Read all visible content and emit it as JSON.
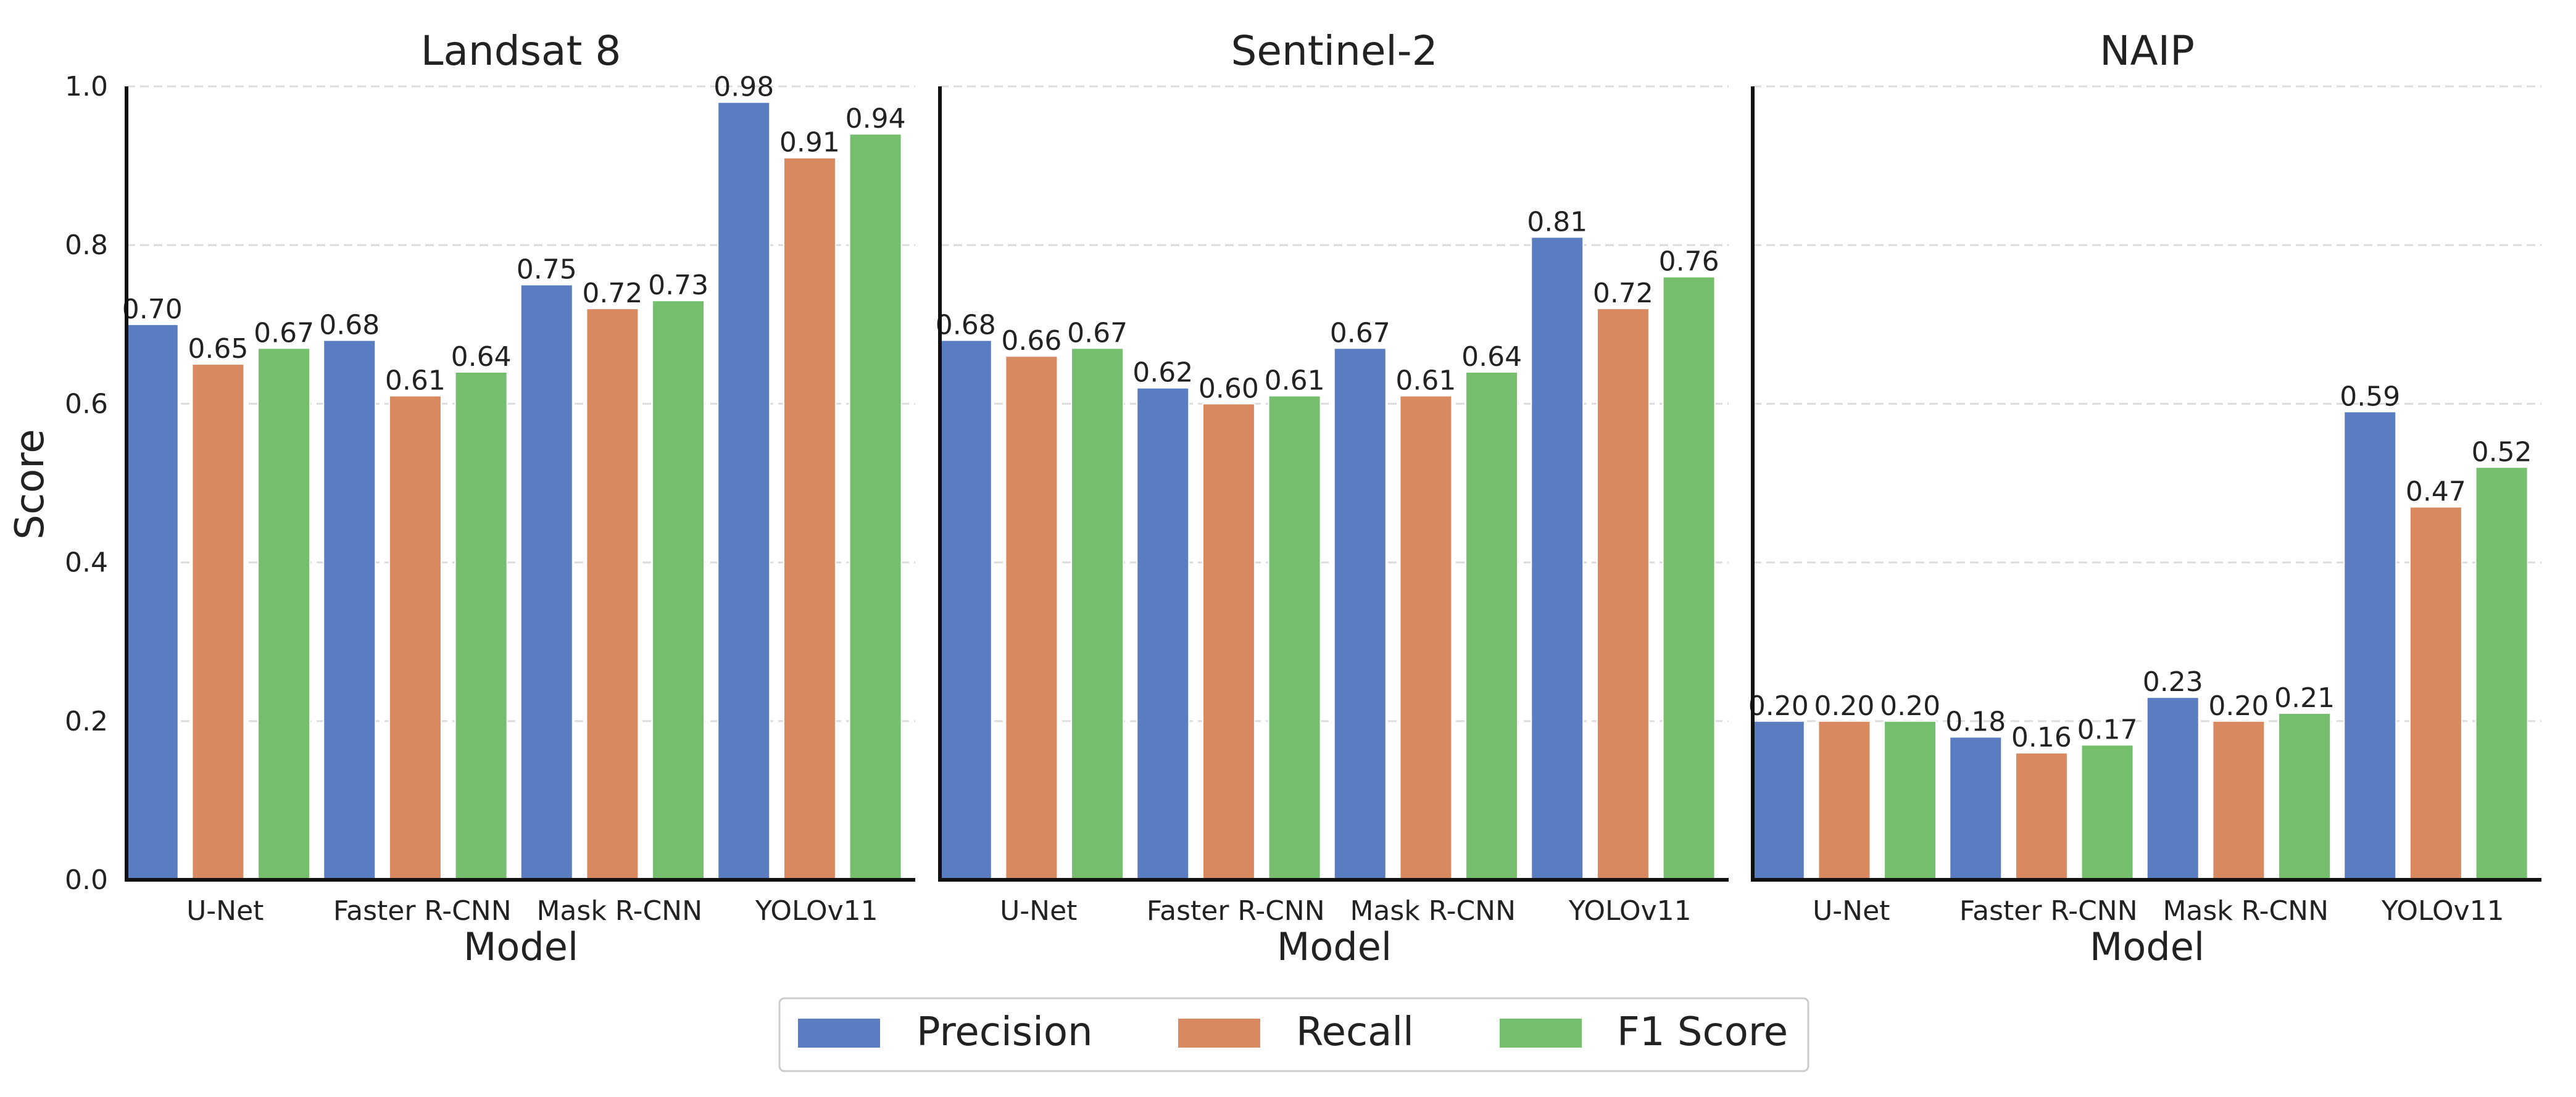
{
  "figure": {
    "ylabel": "Score",
    "legend": [
      {
        "name": "Precision",
        "color": "#5A7DC1"
      },
      {
        "name": "Recall",
        "color": "#D9895F"
      },
      {
        "name": "F1 Score",
        "color": "#74BE6E"
      }
    ]
  },
  "chart_data": [
    {
      "type": "bar",
      "title": "Landsat 8",
      "xlabel": "Model",
      "ylabel": "Score",
      "categories": [
        "U-Net",
        "Faster R-CNN",
        "Mask R-CNN",
        "YOLOv11"
      ],
      "yticks": [
        "0.0",
        "0.2",
        "0.4",
        "0.6",
        "0.8",
        "1.0"
      ],
      "ylim": [
        0,
        1.0
      ],
      "grid": true,
      "series": [
        {
          "name": "Precision",
          "color": "#5A7DC1",
          "values": [
            0.7,
            0.68,
            0.75,
            0.98
          ],
          "labels": [
            "0.70",
            "0.68",
            "0.75",
            "0.98"
          ]
        },
        {
          "name": "Recall",
          "color": "#D9895F",
          "values": [
            0.65,
            0.61,
            0.72,
            0.91
          ],
          "labels": [
            "0.65",
            "0.61",
            "0.72",
            "0.91"
          ]
        },
        {
          "name": "F1 Score",
          "color": "#74BE6E",
          "values": [
            0.67,
            0.64,
            0.73,
            0.94
          ],
          "labels": [
            "0.67",
            "0.64",
            "0.73",
            "0.94"
          ]
        }
      ]
    },
    {
      "type": "bar",
      "title": "Sentinel-2",
      "xlabel": "Model",
      "ylabel": "",
      "categories": [
        "U-Net",
        "Faster R-CNN",
        "Mask R-CNN",
        "YOLOv11"
      ],
      "yticks": [],
      "ylim": [
        0,
        1.0
      ],
      "grid": true,
      "series": [
        {
          "name": "Precision",
          "color": "#5A7DC1",
          "values": [
            0.68,
            0.62,
            0.67,
            0.81
          ],
          "labels": [
            "0.68",
            "0.62",
            "0.67",
            "0.81"
          ]
        },
        {
          "name": "Recall",
          "color": "#D9895F",
          "values": [
            0.66,
            0.6,
            0.61,
            0.72
          ],
          "labels": [
            "0.66",
            "0.60",
            "0.61",
            "0.72"
          ]
        },
        {
          "name": "F1 Score",
          "color": "#74BE6E",
          "values": [
            0.67,
            0.61,
            0.64,
            0.76
          ],
          "labels": [
            "0.67",
            "0.61",
            "0.64",
            "0.76"
          ]
        }
      ]
    },
    {
      "type": "bar",
      "title": "NAIP",
      "xlabel": "Model",
      "ylabel": "",
      "categories": [
        "U-Net",
        "Faster R-CNN",
        "Mask R-CNN",
        "YOLOv11"
      ],
      "yticks": [],
      "ylim": [
        0,
        1.0
      ],
      "grid": true,
      "series": [
        {
          "name": "Precision",
          "color": "#5A7DC1",
          "values": [
            0.2,
            0.18,
            0.23,
            0.59
          ],
          "labels": [
            "0.20",
            "0.18",
            "0.23",
            "0.59"
          ]
        },
        {
          "name": "Recall",
          "color": "#D9895F",
          "values": [
            0.2,
            0.16,
            0.2,
            0.47
          ],
          "labels": [
            "0.20",
            "0.16",
            "0.20",
            "0.47"
          ]
        },
        {
          "name": "F1 Score",
          "color": "#74BE6E",
          "values": [
            0.2,
            0.17,
            0.21,
            0.52
          ],
          "labels": [
            "0.20",
            "0.17",
            "0.21",
            "0.52"
          ]
        }
      ]
    }
  ]
}
